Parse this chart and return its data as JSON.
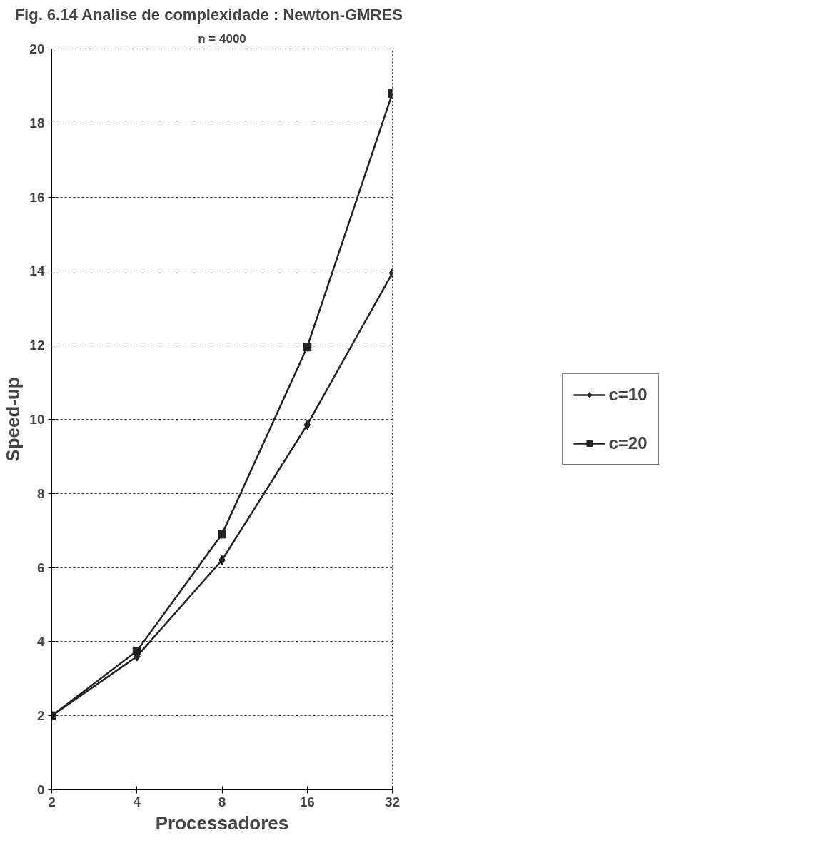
{
  "chart_data": {
    "type": "line",
    "title": "Fig. 6.14    Analise de complexidade :    Newton-GMRES",
    "subtitle": "n = 4000",
    "xlabel": "Processadores",
    "ylabel": "Speed-up",
    "categories": [
      "2",
      "4",
      "8",
      "16",
      "32"
    ],
    "series": [
      {
        "name": "c=10",
        "color": "#222222",
        "marker": "diamond",
        "values": [
          2,
          3.6,
          6.2,
          9.85,
          13.95
        ]
      },
      {
        "name": "c=20",
        "color": "#222222",
        "marker": "square",
        "values": [
          2,
          3.75,
          6.9,
          11.95,
          18.8
        ]
      }
    ],
    "ylim": [
      0,
      20
    ],
    "yticks": [
      0,
      2,
      4,
      6,
      8,
      10,
      12,
      14,
      16,
      18,
      20
    ],
    "grid": "y",
    "legend": "right",
    "line_style": "solid"
  }
}
